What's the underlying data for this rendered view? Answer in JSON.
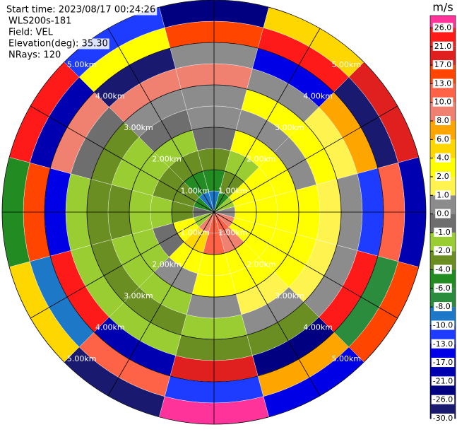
{
  "chart_data": {
    "type": "ppi",
    "info_lines": [
      "Start time: 2023/08/17 00:24:26",
      "WLS200s-181",
      "Field: VEL",
      "Elevation(deg): 35.30",
      "NRays: 120"
    ],
    "azimuths": [
      0,
      30,
      60,
      90,
      120,
      150,
      180,
      210,
      240,
      270,
      300,
      330
    ],
    "range_edges": [
      0,
      0.5,
      1,
      1.5,
      2,
      2.5,
      3,
      3.5,
      4,
      4.5,
      5
    ],
    "values": [
      [
        -9,
        -5,
        -3,
        -0.5,
        0.5,
        0.5,
        9,
        0.5,
        15,
        -22
      ],
      [
        -5,
        -3,
        -1.5,
        3,
        0.5,
        3,
        0.5,
        -15,
        23,
        5
      ],
      [
        -1.5,
        3,
        3,
        3,
        0.5,
        3,
        1.5,
        7,
        -28,
        19
      ],
      [
        0.5,
        3,
        3,
        3,
        3,
        1.5,
        0.5,
        -12,
        11,
        -19
      ],
      [
        9,
        3,
        3,
        3,
        3,
        1.5,
        0.5,
        24,
        -7,
        14
      ],
      [
        11,
        9,
        3,
        3,
        1.5,
        0.5,
        -3,
        -24,
        7,
        -16
      ],
      [
        11,
        11,
        3,
        3,
        0.5,
        -1.5,
        -3,
        18,
        -11,
        27
      ],
      [
        9,
        5,
        3,
        0.5,
        -1.5,
        -3,
        -1.5,
        -18,
        12,
        -27
      ],
      [
        -1.5,
        3,
        -0.5,
        -1.5,
        -1.5,
        -3,
        -1.5,
        22,
        -9,
        4
      ],
      [
        -0.5,
        -3,
        -1.5,
        -1.5,
        -3,
        -3,
        -1.5,
        -14,
        16,
        -5
      ],
      [
        -5,
        -3,
        -3,
        -1.5,
        -1.5,
        -3,
        -0.5,
        9,
        -20,
        25
      ],
      [
        -9,
        -5,
        -3,
        -1.5,
        -0.5,
        0.5,
        8,
        -26.5,
        2,
        -11
      ]
    ],
    "rings": [
      {
        "value": 1,
        "label": "1.00km"
      },
      {
        "value": 2,
        "label": "2.00km"
      },
      {
        "value": 3,
        "label": "3.00km"
      },
      {
        "value": 4,
        "label": "4.00km"
      },
      {
        "value": 5,
        "label": "5.00km"
      }
    ],
    "colorbar": {
      "label": "m/s",
      "ticks": [
        {
          "value": -30,
          "label": "-30.0"
        },
        {
          "value": -26,
          "label": "-26.0"
        },
        {
          "value": -21,
          "label": "-21.0"
        },
        {
          "value": -17,
          "label": "-17.0"
        },
        {
          "value": -13,
          "label": "-13.0"
        },
        {
          "value": -10,
          "label": "-10.0"
        },
        {
          "value": -8,
          "label": "-8.0"
        },
        {
          "value": -6,
          "label": "-6.0"
        },
        {
          "value": -4,
          "label": "-4.0"
        },
        {
          "value": -2,
          "label": "-2.0"
        },
        {
          "value": -1,
          "label": "-1.0"
        },
        {
          "value": 0,
          "label": "0.0"
        },
        {
          "value": 1,
          "label": "1.0"
        },
        {
          "value": 2,
          "label": "2.0"
        },
        {
          "value": 4,
          "label": "4.0"
        },
        {
          "value": 6,
          "label": "6.0"
        },
        {
          "value": 8,
          "label": "8.0"
        },
        {
          "value": 10,
          "label": "10.0"
        },
        {
          "value": 13,
          "label": "13.0"
        },
        {
          "value": 17,
          "label": "17.0"
        },
        {
          "value": 21,
          "label": "21.0"
        },
        {
          "value": 26,
          "label": "26.0"
        }
      ],
      "colors": [
        "#191970",
        "#000080",
        "#0000b0",
        "#0000e6",
        "#1e3cff",
        "#1e78c8",
        "#2a8c3c",
        "#228b22",
        "#6b8e23",
        "#9acd32",
        "#6e6e6e",
        "#8c8c8c",
        "#fff44f",
        "#ffff00",
        "#ffd700",
        "#ffa500",
        "#f08070",
        "#ff6347",
        "#ff4500",
        "#e0201e",
        "#ff1a1a",
        "#ff3399"
      ]
    }
  }
}
